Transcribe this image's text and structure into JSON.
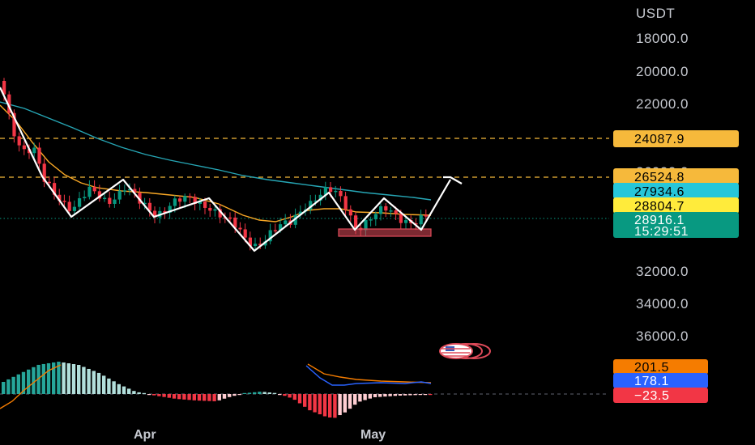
{
  "chart_data": {
    "type": "candlestick",
    "currency": "USDT",
    "y_axis": {
      "ticks": [
        "18000.0",
        "20000.0",
        "22000.0",
        "26000.0",
        "32000.0",
        "34000.0",
        "36000.0"
      ],
      "inverted": true
    },
    "x_axis": {
      "ticks": [
        "Apr",
        "May"
      ]
    },
    "price_levels": [
      {
        "label": "24087.9",
        "color": "#f6b93b",
        "text_color": "#000000",
        "dashed": true
      },
      {
        "label": "26524.8",
        "color": "#f6b93b",
        "text_color": "#000000",
        "dashed": true
      },
      {
        "label": "27934.6",
        "color": "#26c6da",
        "text_color": "#000000"
      },
      {
        "label": "28804.7",
        "color": "#ffeb3b",
        "text_color": "#000000"
      },
      {
        "label": "28916.1",
        "sublabel": "15:29:51",
        "color": "#089981",
        "text_color": "#ffffff",
        "dotted": true
      }
    ],
    "indicator": {
      "type": "macd",
      "labels": [
        {
          "label": "201.5",
          "color": "#f57c00",
          "text_color": "#000000"
        },
        {
          "label": "178.1",
          "color": "#2962ff",
          "text_color": "#ffffff"
        },
        {
          "label": "−23.5",
          "color": "#f23645",
          "text_color": "#ffffff"
        }
      ]
    },
    "colors": {
      "up": "#089981",
      "down": "#f23645",
      "ema_short": "#f9a825",
      "ema_long": "#26a6b5",
      "pattern": "#ffffff"
    },
    "icons": [
      "flag-icon",
      "projection-arrow-icon"
    ]
  }
}
